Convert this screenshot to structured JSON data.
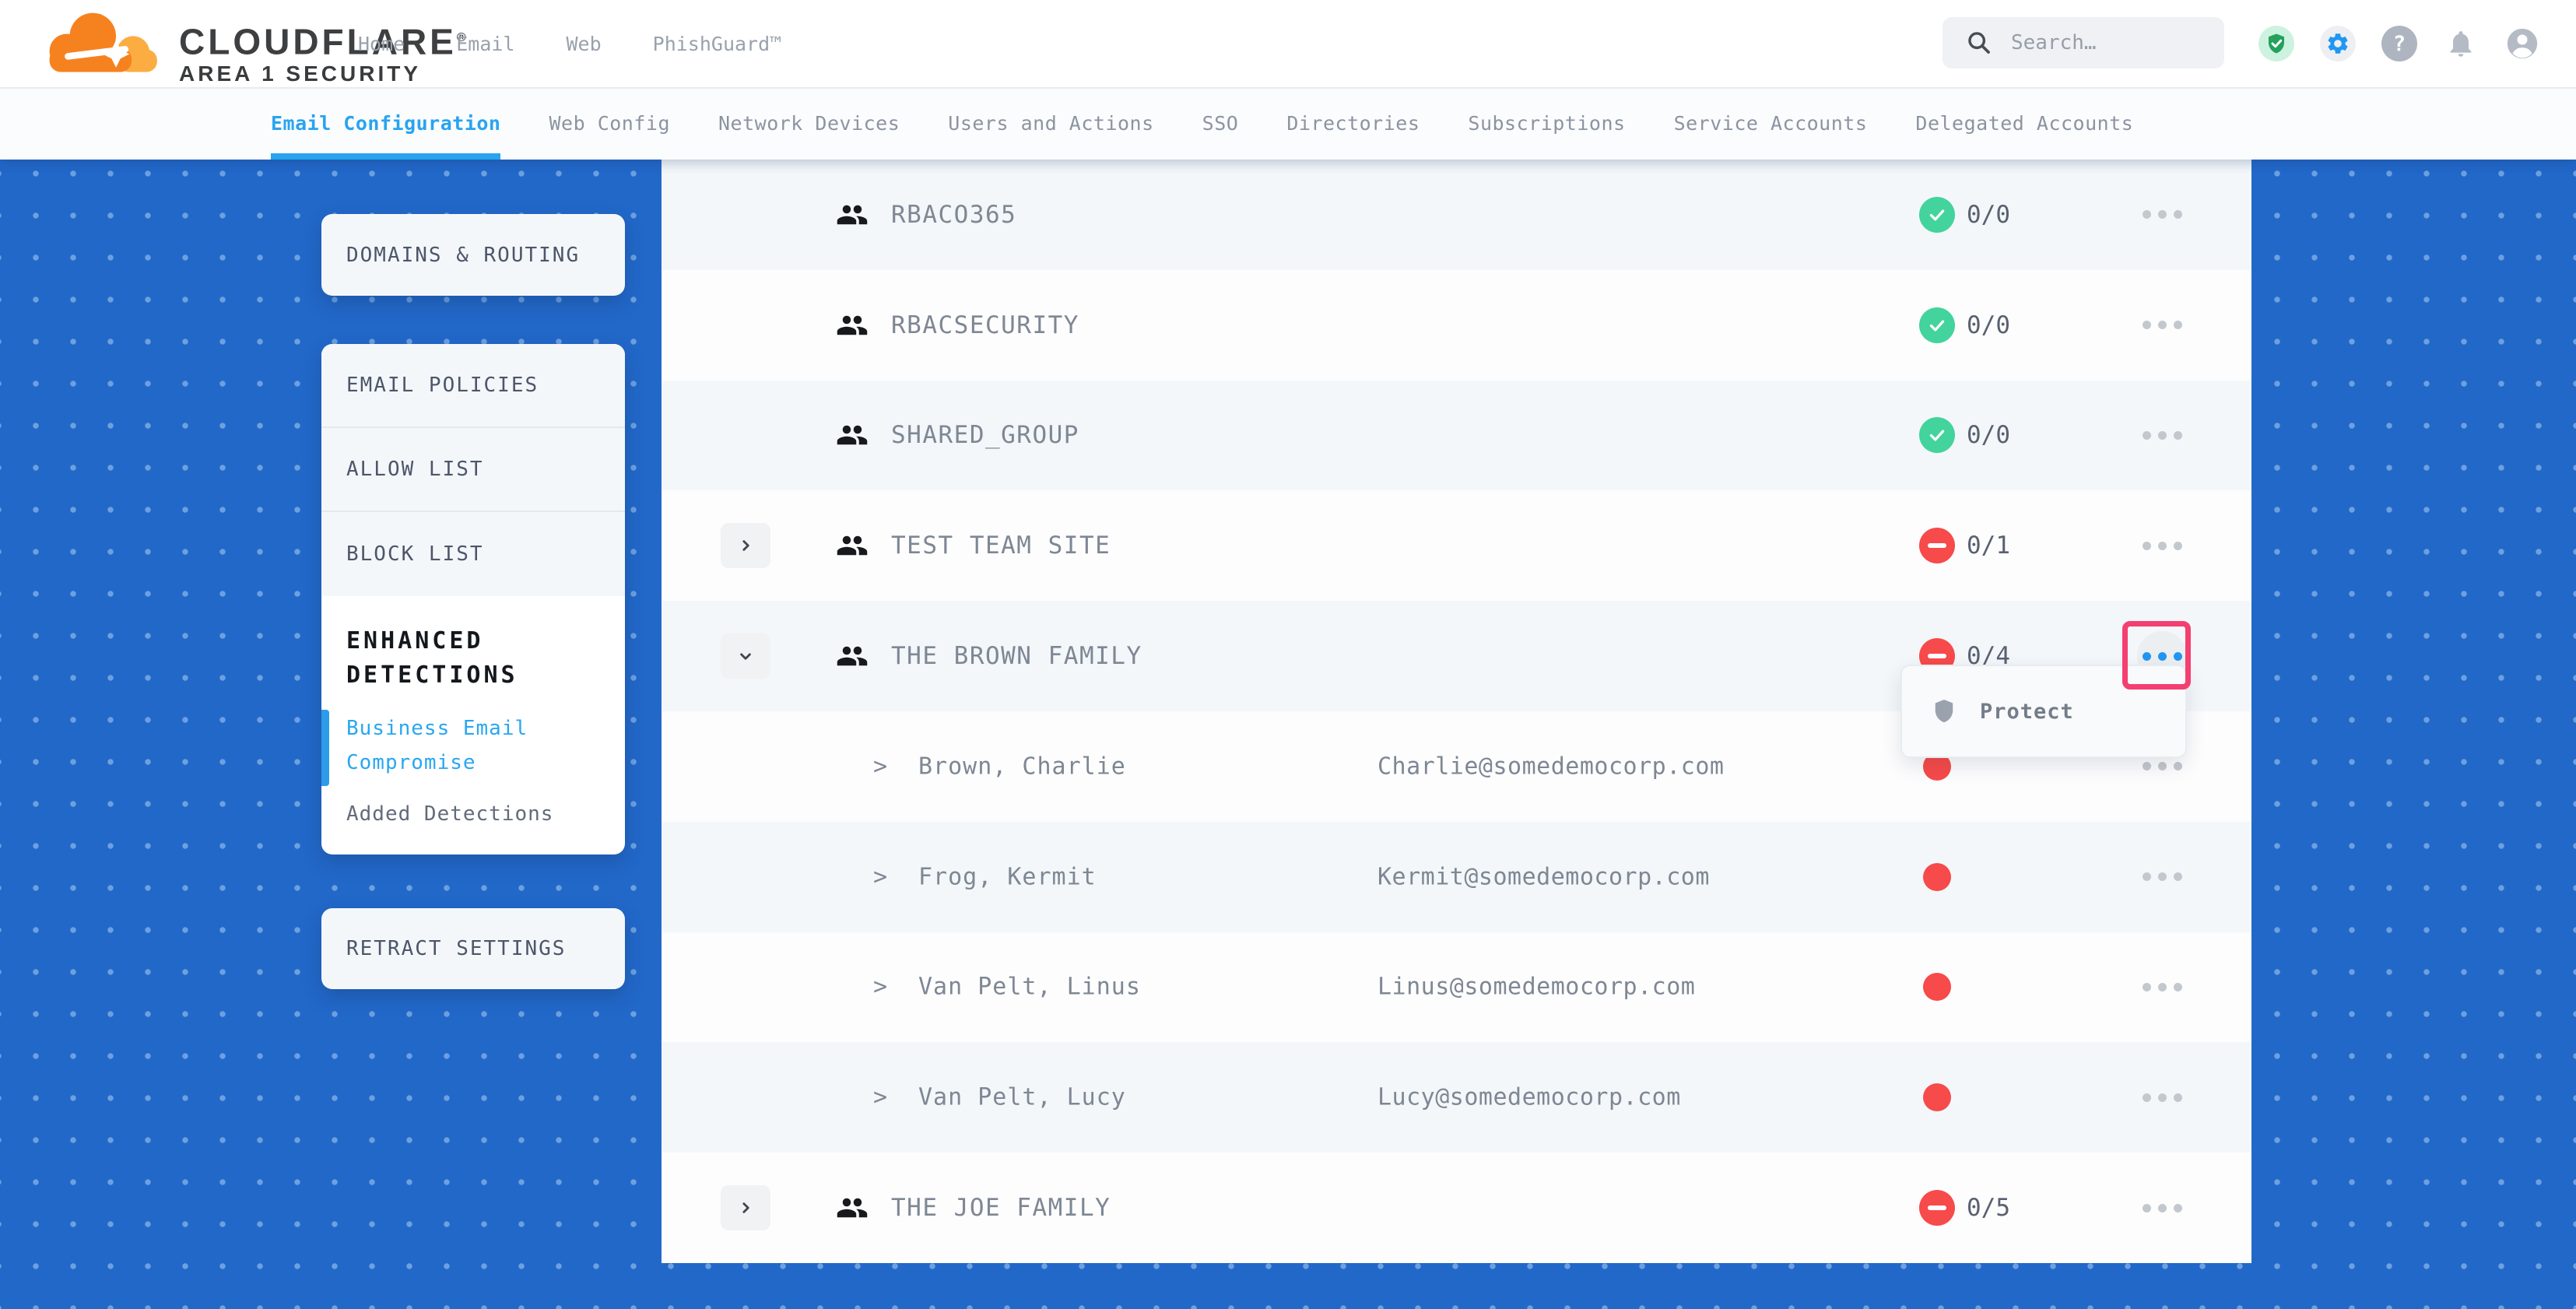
{
  "header": {
    "logo": {
      "line1": "CLOUDFLARE",
      "reg": "®",
      "line2": "AREA 1 SECURITY"
    },
    "nav": [
      "Home",
      "Email",
      "Web",
      "PhishGuard™"
    ],
    "search_placeholder": "Search…",
    "icons": [
      "shield-check",
      "settings-gear",
      "help-question",
      "notifications-bell",
      "account-avatar"
    ],
    "help_glyph": "?"
  },
  "subnav": {
    "tabs": [
      {
        "label": "Email Configuration",
        "active": true
      },
      {
        "label": "Web Config",
        "active": false
      },
      {
        "label": "Network Devices",
        "active": false
      },
      {
        "label": "Users and Actions",
        "active": false
      },
      {
        "label": "SSO",
        "active": false
      },
      {
        "label": "Directories",
        "active": false
      },
      {
        "label": "Subscriptions",
        "active": false
      },
      {
        "label": "Service Accounts",
        "active": false
      },
      {
        "label": "Delegated Accounts",
        "active": false
      }
    ]
  },
  "sidebar": {
    "domains_label": "DOMAINS & ROUTING",
    "policies": [
      "EMAIL POLICIES",
      "ALLOW LIST",
      "BLOCK LIST"
    ],
    "enhanced": {
      "title": "ENHANCED DETECTIONS",
      "links": [
        {
          "label": "Business Email Compromise",
          "active": true
        },
        {
          "label": "Added Detections",
          "active": false
        }
      ]
    },
    "retract_label": "RETRACT SETTINGS"
  },
  "table": {
    "member_arrow": ">",
    "rows": [
      {
        "kind": "group",
        "name": "RBACO365",
        "status": "allowed",
        "count": "0/0"
      },
      {
        "kind": "group",
        "name": "RBACSECURITY",
        "status": "allowed",
        "count": "0/0"
      },
      {
        "kind": "group",
        "name": "SHARED_GROUP",
        "status": "allowed",
        "count": "0/0"
      },
      {
        "kind": "group",
        "name": "TEST TEAM SITE",
        "status": "blocked",
        "count": "0/1",
        "expand": "collapsed"
      },
      {
        "kind": "group",
        "name": "THE BROWN FAMILY",
        "status": "blocked",
        "count": "0/4",
        "expand": "expanded",
        "menu_active": true,
        "annotated": true
      },
      {
        "kind": "member",
        "name": "Brown, Charlie",
        "email": "Charlie@somedemocorp.com",
        "status": "flagged"
      },
      {
        "kind": "member",
        "name": "Frog, Kermit",
        "email": "Kermit@somedemocorp.com",
        "status": "flagged"
      },
      {
        "kind": "member",
        "name": "Van Pelt, Linus",
        "email": "Linus@somedemocorp.com",
        "status": "flagged"
      },
      {
        "kind": "member",
        "name": "Van Pelt, Lucy",
        "email": "Lucy@somedemocorp.com",
        "status": "flagged"
      },
      {
        "kind": "group",
        "name": "THE JOE FAMILY",
        "status": "blocked",
        "count": "0/5",
        "expand": "collapsed"
      }
    ]
  },
  "context_menu": {
    "items": [
      {
        "icon": "shield-icon",
        "label": "Protect"
      }
    ]
  },
  "colors": {
    "background_blue": "#2268c9",
    "accent_blue": "#29a4ef",
    "menu_dot_blue": "#2196f3",
    "brand_orange": "#f6821f",
    "brand_orange_light": "#fbad41",
    "success_green": "#43d39c",
    "danger_red": "#f74a4a",
    "annotation_pink": "#f43f70"
  }
}
